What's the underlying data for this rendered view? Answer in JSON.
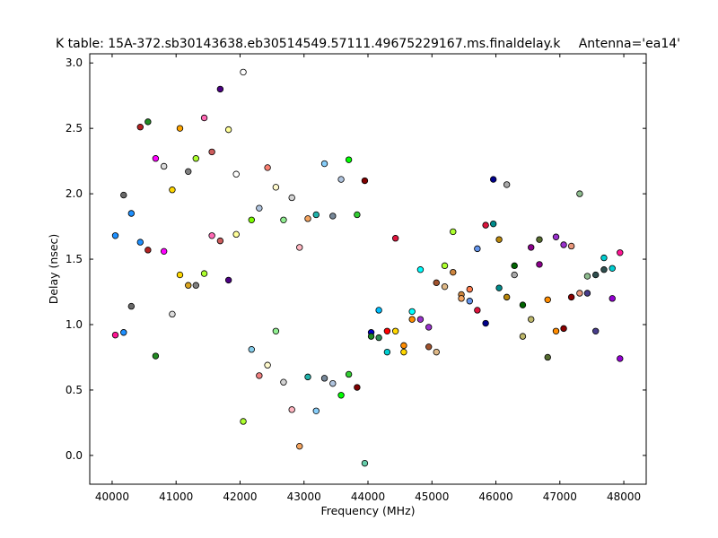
{
  "chart_data": {
    "type": "scatter",
    "title": "K table: 15A-372.sb30143638.eb30514549.57111.49675229167.ms.finaldelay.k",
    "title_right": "Antenna='ea14'",
    "xlabel": "Frequency (MHz)",
    "ylabel": "Delay (nsec)",
    "xlim": [
      39650,
      48350
    ],
    "ylim": [
      -0.22,
      3.07
    ],
    "x_ticks": [
      40000,
      41000,
      42000,
      43000,
      44000,
      45000,
      46000,
      47000,
      48000
    ],
    "x_tick_labels": [
      "40000",
      "41000",
      "42000",
      "43000",
      "44000",
      "45000",
      "46000",
      "47000",
      "48000"
    ],
    "y_ticks": [
      0.0,
      0.5,
      1.0,
      1.5,
      2.0,
      2.5,
      3.0
    ],
    "y_tick_labels": [
      "0.0",
      "0.5",
      "1.0",
      "1.5",
      "2.0",
      "2.5",
      "3.0"
    ],
    "grid": false,
    "points": [
      {
        "x": 40050,
        "y": 1.68,
        "color": "#1e90ff"
      },
      {
        "x": 40050,
        "y": 0.92,
        "color": "#ff1493"
      },
      {
        "x": 40180,
        "y": 1.99,
        "color": "#696969"
      },
      {
        "x": 40180,
        "y": 0.94,
        "color": "#1e90ff"
      },
      {
        "x": 40300,
        "y": 1.85,
        "color": "#1e90ff"
      },
      {
        "x": 40300,
        "y": 1.14,
        "color": "#696969"
      },
      {
        "x": 40440,
        "y": 2.51,
        "color": "#b22222"
      },
      {
        "x": 40440,
        "y": 1.63,
        "color": "#1e90ff"
      },
      {
        "x": 40560,
        "y": 2.55,
        "color": "#228b22"
      },
      {
        "x": 40560,
        "y": 1.57,
        "color": "#b22222"
      },
      {
        "x": 40680,
        "y": 2.27,
        "color": "#ff00ff"
      },
      {
        "x": 40680,
        "y": 0.76,
        "color": "#228b22"
      },
      {
        "x": 40810,
        "y": 2.21,
        "color": "#dcdcdc"
      },
      {
        "x": 40810,
        "y": 1.56,
        "color": "#ff00ff"
      },
      {
        "x": 40940,
        "y": 2.03,
        "color": "#ffd700"
      },
      {
        "x": 40940,
        "y": 1.08,
        "color": "#dcdcdc"
      },
      {
        "x": 41060,
        "y": 2.5,
        "color": "#ffa500"
      },
      {
        "x": 41060,
        "y": 1.38,
        "color": "#ffd700"
      },
      {
        "x": 41190,
        "y": 2.17,
        "color": "#808080"
      },
      {
        "x": 41190,
        "y": 1.3,
        "color": "#daa520"
      },
      {
        "x": 41310,
        "y": 2.27,
        "color": "#adff2f"
      },
      {
        "x": 41310,
        "y": 1.3,
        "color": "#808080"
      },
      {
        "x": 41440,
        "y": 2.58,
        "color": "#ff69b4"
      },
      {
        "x": 41440,
        "y": 1.39,
        "color": "#adff2f"
      },
      {
        "x": 41560,
        "y": 2.32,
        "color": "#cd5c5c"
      },
      {
        "x": 41560,
        "y": 1.68,
        "color": "#ff69b4"
      },
      {
        "x": 41690,
        "y": 2.8,
        "color": "#4b0082"
      },
      {
        "x": 41690,
        "y": 1.64,
        "color": "#cd5c5c"
      },
      {
        "x": 41820,
        "y": 2.49,
        "color": "#ffff99"
      },
      {
        "x": 41820,
        "y": 1.34,
        "color": "#4b0082"
      },
      {
        "x": 41940,
        "y": 2.15,
        "color": "#ffffff"
      },
      {
        "x": 41940,
        "y": 1.69,
        "color": "#ffff99"
      },
      {
        "x": 42050,
        "y": 2.93,
        "color": "#ffffff"
      },
      {
        "x": 42050,
        "y": 0.26,
        "color": "#adff2f"
      },
      {
        "x": 42180,
        "y": 1.8,
        "color": "#7cfc00"
      },
      {
        "x": 42180,
        "y": 0.81,
        "color": "#87ceeb"
      },
      {
        "x": 42300,
        "y": 1.89,
        "color": "#b0c4de"
      },
      {
        "x": 42300,
        "y": 0.61,
        "color": "#f08080"
      },
      {
        "x": 42430,
        "y": 2.2,
        "color": "#fa8072"
      },
      {
        "x": 42430,
        "y": 0.69,
        "color": "#fffacd"
      },
      {
        "x": 42560,
        "y": 2.05,
        "color": "#fffacd"
      },
      {
        "x": 42560,
        "y": 0.95,
        "color": "#90ee90"
      },
      {
        "x": 42680,
        "y": 1.8,
        "color": "#90ee90"
      },
      {
        "x": 42680,
        "y": 0.56,
        "color": "#d3d3d3"
      },
      {
        "x": 42810,
        "y": 1.97,
        "color": "#d3d3d3"
      },
      {
        "x": 42810,
        "y": 0.35,
        "color": "#ffb6c1"
      },
      {
        "x": 42930,
        "y": 1.59,
        "color": "#ffb6c1"
      },
      {
        "x": 42930,
        "y": 0.07,
        "color": "#f4a460"
      },
      {
        "x": 43060,
        "y": 1.81,
        "color": "#f4a460"
      },
      {
        "x": 43060,
        "y": 0.6,
        "color": "#20b2aa"
      },
      {
        "x": 43190,
        "y": 1.84,
        "color": "#20b2aa"
      },
      {
        "x": 43190,
        "y": 0.34,
        "color": "#87cefa"
      },
      {
        "x": 43320,
        "y": 2.23,
        "color": "#87cefa"
      },
      {
        "x": 43320,
        "y": 0.59,
        "color": "#778899"
      },
      {
        "x": 43450,
        "y": 1.83,
        "color": "#778899"
      },
      {
        "x": 43450,
        "y": 0.55,
        "color": "#b0c4de"
      },
      {
        "x": 43580,
        "y": 2.11,
        "color": "#b0c4de"
      },
      {
        "x": 43580,
        "y": 0.46,
        "color": "#00ff00"
      },
      {
        "x": 43700,
        "y": 2.26,
        "color": "#00ff00"
      },
      {
        "x": 43700,
        "y": 0.62,
        "color": "#32cd32"
      },
      {
        "x": 43830,
        "y": 1.84,
        "color": "#32cd32"
      },
      {
        "x": 43830,
        "y": 0.52,
        "color": "#800000"
      },
      {
        "x": 43950,
        "y": 2.1,
        "color": "#800000"
      },
      {
        "x": 43950,
        "y": -0.06,
        "color": "#66cdaa"
      },
      {
        "x": 44050,
        "y": 0.94,
        "color": "#0000cd"
      },
      {
        "x": 44050,
        "y": 0.91,
        "color": "#228b22"
      },
      {
        "x": 44170,
        "y": 1.11,
        "color": "#00bfff"
      },
      {
        "x": 44170,
        "y": 0.9,
        "color": "#2e8b57"
      },
      {
        "x": 44300,
        "y": 0.95,
        "color": "#ff0000"
      },
      {
        "x": 44300,
        "y": 0.79,
        "color": "#00ced1"
      },
      {
        "x": 44430,
        "y": 1.66,
        "color": "#dc143c"
      },
      {
        "x": 44430,
        "y": 0.95,
        "color": "#ffd700"
      },
      {
        "x": 44560,
        "y": 0.84,
        "color": "#ff8c00"
      },
      {
        "x": 44560,
        "y": 0.79,
        "color": "#ffd700"
      },
      {
        "x": 44690,
        "y": 1.1,
        "color": "#00ffff"
      },
      {
        "x": 44690,
        "y": 1.04,
        "color": "#ff8c00"
      },
      {
        "x": 44820,
        "y": 1.42,
        "color": "#00ffff"
      },
      {
        "x": 44820,
        "y": 1.04,
        "color": "#9932cc"
      },
      {
        "x": 44950,
        "y": 0.98,
        "color": "#9932cc"
      },
      {
        "x": 44950,
        "y": 0.83,
        "color": "#a0522d"
      },
      {
        "x": 45070,
        "y": 1.32,
        "color": "#a0522d"
      },
      {
        "x": 45070,
        "y": 0.79,
        "color": "#deb887"
      },
      {
        "x": 45200,
        "y": 1.45,
        "color": "#adff2f"
      },
      {
        "x": 45200,
        "y": 1.29,
        "color": "#deb887"
      },
      {
        "x": 45330,
        "y": 1.71,
        "color": "#adff2f"
      },
      {
        "x": 45330,
        "y": 1.4,
        "color": "#cd853f"
      },
      {
        "x": 45460,
        "y": 1.23,
        "color": "#cd853f"
      },
      {
        "x": 45460,
        "y": 1.2,
        "color": "#f4a460"
      },
      {
        "x": 45590,
        "y": 1.27,
        "color": "#ff7f50"
      },
      {
        "x": 45590,
        "y": 1.18,
        "color": "#6495ed"
      },
      {
        "x": 45710,
        "y": 1.58,
        "color": "#6495ed"
      },
      {
        "x": 45710,
        "y": 1.11,
        "color": "#dc143c"
      },
      {
        "x": 45840,
        "y": 1.76,
        "color": "#dc143c"
      },
      {
        "x": 45840,
        "y": 1.01,
        "color": "#00008b"
      },
      {
        "x": 45960,
        "y": 2.11,
        "color": "#00008b"
      },
      {
        "x": 45960,
        "y": 1.77,
        "color": "#008b8b"
      },
      {
        "x": 46050,
        "y": 1.65,
        "color": "#b8860b"
      },
      {
        "x": 46050,
        "y": 1.28,
        "color": "#008b8b"
      },
      {
        "x": 46170,
        "y": 2.07,
        "color": "#a9a9a9"
      },
      {
        "x": 46170,
        "y": 1.21,
        "color": "#b8860b"
      },
      {
        "x": 46290,
        "y": 1.45,
        "color": "#006400"
      },
      {
        "x": 46290,
        "y": 1.38,
        "color": "#a9a9a9"
      },
      {
        "x": 46420,
        "y": 1.15,
        "color": "#006400"
      },
      {
        "x": 46420,
        "y": 0.91,
        "color": "#bdb76b"
      },
      {
        "x": 46550,
        "y": 1.59,
        "color": "#8b008b"
      },
      {
        "x": 46550,
        "y": 1.04,
        "color": "#bdb76b"
      },
      {
        "x": 46680,
        "y": 1.65,
        "color": "#556b2f"
      },
      {
        "x": 46680,
        "y": 1.46,
        "color": "#8b008b"
      },
      {
        "x": 46810,
        "y": 1.19,
        "color": "#ff8c00"
      },
      {
        "x": 46810,
        "y": 0.75,
        "color": "#556b2f"
      },
      {
        "x": 46940,
        "y": 1.67,
        "color": "#9932cc"
      },
      {
        "x": 46940,
        "y": 0.95,
        "color": "#ff8c00"
      },
      {
        "x": 47060,
        "y": 1.61,
        "color": "#9932cc"
      },
      {
        "x": 47060,
        "y": 0.97,
        "color": "#8b0000"
      },
      {
        "x": 47180,
        "y": 1.6,
        "color": "#e9967a"
      },
      {
        "x": 47180,
        "y": 1.21,
        "color": "#8b0000"
      },
      {
        "x": 47310,
        "y": 2.0,
        "color": "#8fbc8f"
      },
      {
        "x": 47310,
        "y": 1.24,
        "color": "#e9967a"
      },
      {
        "x": 47430,
        "y": 1.37,
        "color": "#8fbc8f"
      },
      {
        "x": 47430,
        "y": 1.24,
        "color": "#483d8b"
      },
      {
        "x": 47560,
        "y": 1.38,
        "color": "#2f4f4f"
      },
      {
        "x": 47560,
        "y": 0.95,
        "color": "#483d8b"
      },
      {
        "x": 47690,
        "y": 1.51,
        "color": "#00ced1"
      },
      {
        "x": 47690,
        "y": 1.42,
        "color": "#2f4f4f"
      },
      {
        "x": 47820,
        "y": 1.43,
        "color": "#00ced1"
      },
      {
        "x": 47820,
        "y": 1.2,
        "color": "#9400d3"
      },
      {
        "x": 47940,
        "y": 1.55,
        "color": "#ff1493"
      },
      {
        "x": 47940,
        "y": 0.74,
        "color": "#9400d3"
      }
    ]
  }
}
